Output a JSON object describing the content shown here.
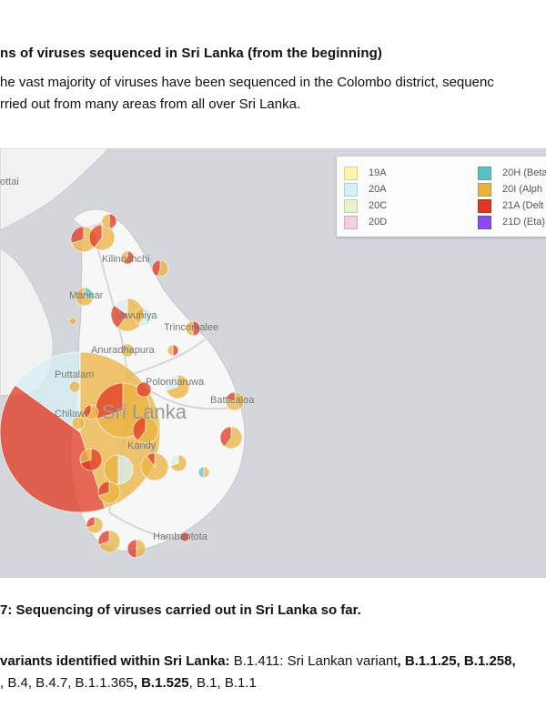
{
  "heading": "ns of viruses sequenced in Sri Lanka (from the beginning)",
  "paragraph": {
    "line1": "he vast majority of viruses have been sequenced in the Colombo district, sequenc",
    "line2": "rried out from many areas from all over Sri Lanka."
  },
  "map": {
    "country_label": "Sri Lanka",
    "places": {
      "mottai": "ottai",
      "kilinochchi": "Kilinochchi",
      "mannar": "Mannar",
      "vavuniya": "Vavuniya",
      "trincomalee": "Trincomalee",
      "anuradhapura": "Anuradhapura",
      "puttalam": "Puttalam",
      "polonnaruwa": "Polonnaruwa",
      "batticaloa": "Batticaloa",
      "chilaw": "Chilaw",
      "kandy": "Kandy",
      "hambantota": "Hambantota"
    },
    "legend": [
      {
        "label": "19A",
        "color": "#fdf6a8"
      },
      {
        "label": "20H (Beta",
        "color": "#5ac1c0"
      },
      {
        "label": "20A",
        "color": "#d6f0f5"
      },
      {
        "label": "20I (Alph",
        "color": "#e9b23f"
      },
      {
        "label": "20C",
        "color": "#e4f3cf"
      },
      {
        "label": "21A (Delt",
        "color": "#e2371f"
      },
      {
        "label": "20D",
        "color": "#f3cde0"
      },
      {
        "label": "21D (Eta)",
        "color": "#8c4bf0"
      }
    ]
  },
  "caption": "7: Sequencing of viruses carried out in Sri Lanka so far.",
  "variants": {
    "label": "variants identified within Sri Lanka:",
    "line1_tail_1": " B.1.411: Sri Lankan variant",
    "line1_tail_2": ", B.1.1.25",
    "line1_tail_3": ", B.1.258",
    "line1_tail_4": ",",
    "line2_1": ", B.4, B.4.7, B.1.1.365",
    "line2_2": ", B.1.525",
    "line2_3": ", B.1, B.1.1"
  }
}
